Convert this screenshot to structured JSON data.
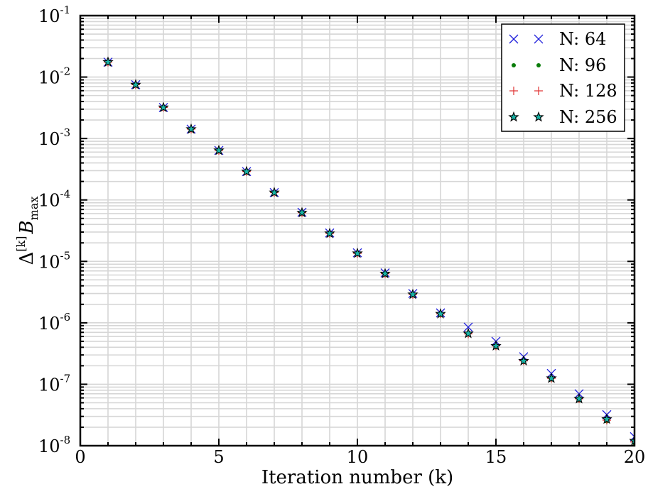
{
  "chart_data": {
    "type": "scatter",
    "title": "",
    "xlabel": "Iteration number (k)",
    "ylabel": {
      "prefix": "Δ",
      "superscript": "[k]",
      "main": "B",
      "subscript": "max"
    },
    "x_scale": "linear",
    "y_scale": "log",
    "xlim": [
      0,
      20
    ],
    "ylim": [
      1e-08,
      0.1
    ],
    "x_ticks": [
      0,
      5,
      10,
      15,
      20
    ],
    "y_ticks": [
      {
        "base": "10",
        "exp": "-8",
        "value": 1e-08
      },
      {
        "base": "10",
        "exp": "-7",
        "value": 1e-07
      },
      {
        "base": "10",
        "exp": "-6",
        "value": 1e-06
      },
      {
        "base": "10",
        "exp": "-5",
        "value": 1e-05
      },
      {
        "base": "10",
        "exp": "-4",
        "value": 0.0001
      },
      {
        "base": "10",
        "exp": "-3",
        "value": 0.001
      },
      {
        "base": "10",
        "exp": "-2",
        "value": 0.01
      },
      {
        "base": "10",
        "exp": "-1",
        "value": 0.1
      }
    ],
    "grid": true,
    "legend_position": "top-right",
    "series": [
      {
        "name": "N: 64",
        "marker": "x",
        "color": "#1f1fdb",
        "x": [
          1,
          2,
          3,
          4,
          5,
          6,
          7,
          8,
          9,
          10,
          11,
          12,
          13,
          14,
          15,
          16,
          17,
          18,
          19,
          20
        ],
        "y": [
          0.0175,
          0.0075,
          0.0032,
          0.00142,
          0.00064,
          0.00029,
          0.000132,
          6.3e-05,
          2.9e-05,
          1.38e-05,
          6.5e-06,
          3e-06,
          1.45e-06,
          8.5e-07,
          5e-07,
          2.8e-07,
          1.5e-07,
          7e-08,
          3.2e-08,
          1.4e-08
        ]
      },
      {
        "name": "N: 96",
        "marker": "dot",
        "color": "#0a7d0a",
        "x": [
          1,
          2,
          3,
          4,
          5,
          6,
          7,
          8,
          9,
          10,
          11,
          12,
          13,
          14,
          15,
          16,
          17,
          18,
          19,
          20
        ],
        "y": [
          0.0175,
          0.0075,
          0.0032,
          0.00142,
          0.00064,
          0.00029,
          0.000132,
          6.2e-05,
          2.85e-05,
          1.35e-05,
          6.3e-06,
          2.9e-06,
          1.4e-06,
          6.5e-07,
          4e-07,
          2.3e-07,
          1.2e-07,
          5.5e-08,
          2.5e-08,
          1.1e-08
        ]
      },
      {
        "name": "N: 128",
        "marker": "plus",
        "color": "#e03030",
        "x": [
          1,
          2,
          3,
          4,
          5,
          6,
          7,
          8,
          9,
          10,
          11,
          12,
          13,
          14,
          15,
          16,
          17,
          18,
          19,
          20
        ],
        "y": [
          0.0175,
          0.0075,
          0.0032,
          0.00142,
          0.00064,
          0.00029,
          0.000132,
          6.2e-05,
          2.85e-05,
          1.35e-05,
          6.3e-06,
          2.9e-06,
          1.4e-06,
          6.6e-07,
          4.2e-07,
          2.4e-07,
          1.25e-07,
          5.8e-08,
          2.6e-08,
          1.15e-08
        ]
      },
      {
        "name": "N: 256",
        "marker": "star",
        "color": "#17b3a6",
        "x": [
          1,
          2,
          3,
          4,
          5,
          6,
          7,
          8,
          9,
          10,
          11,
          12,
          13,
          14,
          15,
          16,
          17,
          18,
          19,
          20
        ],
        "y": [
          0.0175,
          0.0075,
          0.0032,
          0.00142,
          0.00064,
          0.00029,
          0.000132,
          6.2e-05,
          2.85e-05,
          1.35e-05,
          6.3e-06,
          2.9e-06,
          1.4e-06,
          6.7e-07,
          4.2e-07,
          2.4e-07,
          1.25e-07,
          5.8e-08,
          2.7e-08,
          1.2e-08
        ]
      }
    ]
  }
}
